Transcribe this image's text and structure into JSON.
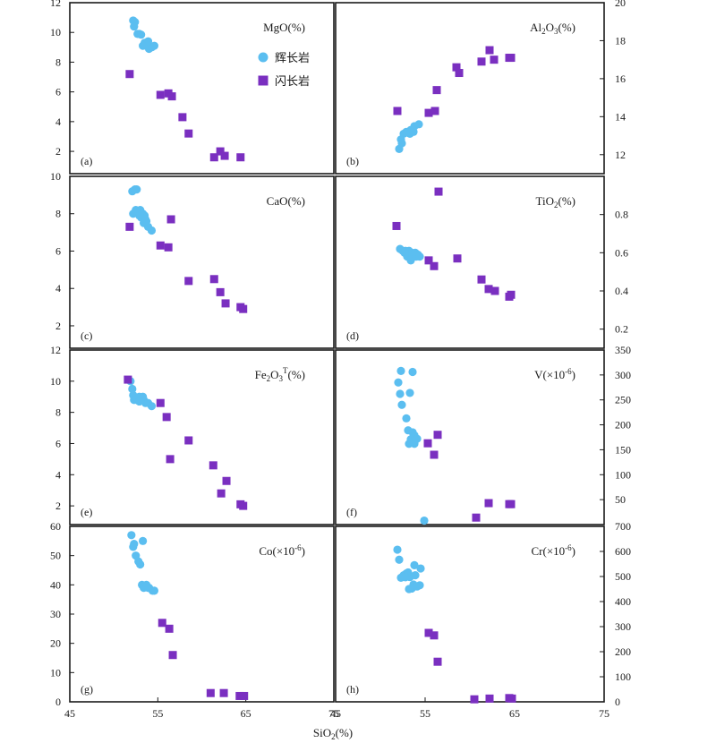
{
  "legend": {
    "gabbro": "辉长岩",
    "diorite": "闪长岩"
  },
  "colors": {
    "gabbro": "#5bbef0",
    "diorite": "#7a2fc0",
    "frame": "#1a1a1a"
  },
  "shared_xlabel": "SiO2(%)",
  "x_ticks": [
    "45",
    "55",
    "65",
    "75"
  ],
  "chart_data": [
    {
      "id": "a",
      "label": "(a)",
      "type": "scatter",
      "title": "MgO(%)",
      "title_html": [
        "MgO(%)"
      ],
      "xlim": [
        45,
        75
      ],
      "ylim": [
        0.5,
        12
      ],
      "yticks": [
        2,
        4,
        6,
        8,
        10,
        12
      ],
      "ytick_labels": [
        "2",
        "4",
        "6",
        "8",
        "10",
        "12"
      ],
      "yaxis": "left",
      "series": [
        {
          "name": "辉长岩",
          "points": [
            [
              52.2,
              10.8
            ],
            [
              52.4,
              10.7
            ],
            [
              52.3,
              10.4
            ],
            [
              52.7,
              9.9
            ],
            [
              52.9,
              9.9
            ],
            [
              53.1,
              9.85
            ],
            [
              53.5,
              9.3
            ],
            [
              53.7,
              9.1
            ],
            [
              53.9,
              9.4
            ],
            [
              53.3,
              9.1
            ],
            [
              54.3,
              9.0
            ],
            [
              54.6,
              9.1
            ],
            [
              54.0,
              8.9
            ]
          ]
        },
        {
          "name": "闪长岩",
          "points": [
            [
              51.8,
              7.2
            ],
            [
              55.3,
              5.8
            ],
            [
              56.2,
              5.9
            ],
            [
              56.6,
              5.7
            ],
            [
              57.8,
              4.3
            ],
            [
              58.5,
              3.2
            ],
            [
              61.4,
              1.6
            ],
            [
              62.1,
              2.0
            ],
            [
              62.6,
              1.7
            ],
            [
              64.4,
              1.6
            ]
          ]
        }
      ]
    },
    {
      "id": "b",
      "label": "(b)",
      "type": "scatter",
      "title": "Al2O3(%)",
      "title_html": [
        "Al",
        "2",
        "O",
        "3",
        "(%)"
      ],
      "xlim": [
        45,
        75
      ],
      "ylim": [
        11,
        20
      ],
      "yticks": [
        12,
        14,
        16,
        18,
        20
      ],
      "ytick_labels": [
        "12",
        "14",
        "16",
        "18",
        "20"
      ],
      "yaxis": "right",
      "series": [
        {
          "name": "辉长岩",
          "points": [
            [
              52.1,
              12.3
            ],
            [
              52.3,
              12.8
            ],
            [
              52.6,
              13.1
            ],
            [
              52.9,
              13.2
            ],
            [
              53.4,
              13.3
            ],
            [
              53.8,
              13.5
            ],
            [
              53.3,
              13.1
            ],
            [
              54.3,
              13.6
            ],
            [
              52.4,
              12.6
            ],
            [
              53.7,
              13.2
            ]
          ]
        },
        {
          "name": "闪长岩",
          "points": [
            [
              51.9,
              14.3
            ],
            [
              55.4,
              14.2
            ],
            [
              56.1,
              14.3
            ],
            [
              56.3,
              15.4
            ],
            [
              58.5,
              16.6
            ],
            [
              58.8,
              16.3
            ],
            [
              61.3,
              16.9
            ],
            [
              62.2,
              17.5
            ],
            [
              62.7,
              17.0
            ],
            [
              64.4,
              17.1
            ],
            [
              64.6,
              17.1
            ]
          ]
        }
      ]
    },
    {
      "id": "c",
      "label": "(c)",
      "type": "scatter",
      "title": "CaO(%)",
      "title_html": [
        "CaO(%)"
      ],
      "xlim": [
        45,
        75
      ],
      "ylim": [
        0.8,
        10
      ],
      "yticks": [
        2,
        4,
        6,
        8,
        10
      ],
      "ytick_labels": [
        "2",
        "4",
        "6",
        "8",
        "10"
      ],
      "yaxis": "left",
      "series": [
        {
          "name": "辉长岩",
          "points": [
            [
              52.1,
              9.2
            ],
            [
              52.4,
              9.3
            ],
            [
              52.6,
              9.3
            ],
            [
              52.2,
              8.0
            ],
            [
              52.5,
              8.2
            ],
            [
              52.8,
              8.1
            ],
            [
              53.0,
              8.2
            ],
            [
              53.3,
              8.0
            ],
            [
              53.5,
              7.9
            ],
            [
              53.1,
              7.8
            ],
            [
              53.7,
              7.6
            ],
            [
              53.4,
              7.5
            ],
            [
              53.9,
              7.3
            ],
            [
              54.3,
              7.1
            ],
            [
              52.9,
              7.9
            ],
            [
              53.6,
              7.7
            ]
          ]
        },
        {
          "name": "闪长岩",
          "points": [
            [
              51.8,
              7.3
            ],
            [
              55.3,
              6.3
            ],
            [
              56.2,
              6.2
            ],
            [
              56.5,
              7.7
            ],
            [
              58.5,
              4.4
            ],
            [
              61.4,
              4.5
            ],
            [
              62.1,
              3.8
            ],
            [
              62.7,
              3.2
            ],
            [
              64.4,
              3.0
            ],
            [
              64.7,
              2.9
            ]
          ]
        }
      ]
    },
    {
      "id": "d",
      "label": "(d)",
      "type": "scatter",
      "title": "TiO2(%)",
      "title_html": [
        "TiO",
        "2",
        "(%)"
      ],
      "xlim": [
        45,
        75
      ],
      "ylim": [
        0.1,
        1.0
      ],
      "yticks": [
        0.2,
        0.4,
        0.6,
        0.8
      ],
      "ytick_labels": [
        "0.2",
        "0.4",
        "0.6",
        "0.8"
      ],
      "yaxis": "right",
      "series": [
        {
          "name": "辉长岩",
          "points": [
            [
              52.2,
              0.62
            ],
            [
              52.5,
              0.61
            ],
            [
              52.8,
              0.61
            ],
            [
              53.2,
              0.61
            ],
            [
              53.5,
              0.6
            ],
            [
              53.9,
              0.6
            ],
            [
              54.2,
              0.59
            ],
            [
              53.0,
              0.58
            ],
            [
              53.3,
              0.58
            ],
            [
              53.6,
              0.59
            ],
            [
              53.4,
              0.56
            ],
            [
              54.0,
              0.58
            ],
            [
              54.4,
              0.58
            ],
            [
              52.7,
              0.6
            ]
          ]
        },
        {
          "name": "闪长岩",
          "points": [
            [
              51.8,
              0.74
            ],
            [
              55.4,
              0.56
            ],
            [
              56.0,
              0.53
            ],
            [
              56.5,
              0.92
            ],
            [
              58.6,
              0.57
            ],
            [
              61.3,
              0.46
            ],
            [
              62.1,
              0.41
            ],
            [
              62.8,
              0.4
            ],
            [
              64.4,
              0.37
            ],
            [
              64.6,
              0.38
            ]
          ]
        }
      ]
    },
    {
      "id": "e",
      "label": "(e)",
      "type": "scatter",
      "title": "Fe2O3T(%)",
      "title_html": [
        "Fe",
        "2",
        "O",
        "3",
        "T",
        "(%)"
      ],
      "xlim": [
        45,
        75
      ],
      "ylim": [
        0.8,
        12
      ],
      "yticks": [
        2,
        4,
        6,
        8,
        10,
        12
      ],
      "ytick_labels": [
        "2",
        "4",
        "6",
        "8",
        "10",
        "12"
      ],
      "yaxis": "left",
      "series": [
        {
          "name": "辉长岩",
          "points": [
            [
              51.9,
              10.0
            ],
            [
              52.1,
              9.5
            ],
            [
              52.2,
              9.1
            ],
            [
              52.3,
              8.8
            ],
            [
              52.6,
              8.8
            ],
            [
              52.9,
              9.0
            ],
            [
              53.1,
              8.8
            ],
            [
              53.4,
              8.8
            ],
            [
              53.6,
              8.6
            ],
            [
              53.9,
              8.6
            ],
            [
              54.3,
              8.4
            ],
            [
              53.3,
              9.0
            ],
            [
              52.9,
              8.7
            ]
          ]
        },
        {
          "name": "闪长岩",
          "points": [
            [
              51.6,
              10.1
            ],
            [
              55.3,
              8.6
            ],
            [
              56.0,
              7.7
            ],
            [
              56.4,
              5.0
            ],
            [
              58.5,
              6.2
            ],
            [
              61.3,
              4.6
            ],
            [
              62.2,
              2.8
            ],
            [
              62.8,
              3.6
            ],
            [
              64.4,
              2.1
            ],
            [
              64.7,
              2.0
            ]
          ]
        }
      ]
    },
    {
      "id": "f",
      "label": "(f)",
      "type": "scatter",
      "title": "V(×10-6)",
      "title_html": [
        "V(×10",
        "-6",
        ")"
      ],
      "xlim": [
        45,
        75
      ],
      "ylim": [
        0,
        350
      ],
      "yticks": [
        50,
        100,
        150,
        200,
        250,
        300,
        350
      ],
      "ytick_labels": [
        "50",
        "100",
        "150",
        "200",
        "250",
        "300",
        "350"
      ],
      "yaxis": "right",
      "series": [
        {
          "name": "辉长岩",
          "points": [
            [
              52.0,
              285
            ],
            [
              52.3,
              308
            ],
            [
              52.2,
              262
            ],
            [
              52.4,
              240
            ],
            [
              52.9,
              213
            ],
            [
              53.1,
              189
            ],
            [
              53.4,
              171
            ],
            [
              53.6,
              185
            ],
            [
              53.8,
              179
            ],
            [
              54.1,
              172
            ],
            [
              53.8,
              162
            ],
            [
              53.2,
              162
            ],
            [
              53.6,
              306
            ],
            [
              53.3,
              264
            ],
            [
              54.9,
              8
            ]
          ]
        },
        {
          "name": "闪长岩",
          "points": [
            [
              55.3,
              163
            ],
            [
              56.0,
              140
            ],
            [
              56.4,
              180
            ],
            [
              60.7,
              14
            ],
            [
              62.1,
              43
            ],
            [
              64.4,
              41
            ],
            [
              64.6,
              41
            ]
          ]
        }
      ]
    },
    {
      "id": "g",
      "label": "(g)",
      "type": "scatter",
      "title": "Co(×10-6)",
      "title_html": [
        "Co(×10",
        "-6",
        ")"
      ],
      "xlim": [
        45,
        75
      ],
      "ylim": [
        0,
        60
      ],
      "yticks": [
        0,
        10,
        20,
        30,
        40,
        50,
        60
      ],
      "ytick_labels": [
        "0",
        "10",
        "20",
        "30",
        "40",
        "50",
        "60"
      ],
      "yaxis": "left",
      "series": [
        {
          "name": "辉长岩",
          "points": [
            [
              52.0,
              57
            ],
            [
              52.3,
              54
            ],
            [
              52.5,
              50
            ],
            [
              52.2,
              53
            ],
            [
              52.8,
              48
            ],
            [
              53.0,
              47
            ],
            [
              53.3,
              55
            ],
            [
              53.2,
              40
            ],
            [
              53.4,
              39
            ],
            [
              53.7,
              40
            ],
            [
              54.0,
              39
            ],
            [
              54.4,
              38
            ],
            [
              54.6,
              38
            ],
            [
              53.9,
              39
            ]
          ]
        },
        {
          "name": "闪长岩",
          "points": [
            [
              55.5,
              27
            ],
            [
              56.3,
              25
            ],
            [
              56.7,
              16
            ],
            [
              61.0,
              3
            ],
            [
              62.5,
              3
            ],
            [
              64.3,
              2
            ],
            [
              64.8,
              2
            ]
          ]
        }
      ]
    },
    {
      "id": "h",
      "label": "(h)",
      "type": "scatter",
      "title": "Cr(×10-6)",
      "title_html": [
        "Cr(×10",
        "-6",
        ")"
      ],
      "xlim": [
        45,
        75
      ],
      "ylim": [
        0,
        700
      ],
      "yticks": [
        0,
        100,
        200,
        300,
        400,
        500,
        600,
        700
      ],
      "ytick_labels": [
        "0",
        "100",
        "200",
        "300",
        "400",
        "500",
        "600",
        "700"
      ],
      "yaxis": "right",
      "series": [
        {
          "name": "辉长岩",
          "points": [
            [
              51.9,
              607
            ],
            [
              52.1,
              567
            ],
            [
              52.3,
              495
            ],
            [
              52.6,
              505
            ],
            [
              52.9,
              512
            ],
            [
              53.1,
              516
            ],
            [
              53.3,
              498
            ],
            [
              53.5,
              452
            ],
            [
              53.7,
              468
            ],
            [
              53.9,
              505
            ],
            [
              54.1,
              460
            ],
            [
              54.4,
              465
            ],
            [
              54.5,
              532
            ],
            [
              53.8,
              545
            ],
            [
              52.8,
              497
            ],
            [
              53.2,
              450
            ]
          ]
        },
        {
          "name": "闪长岩",
          "points": [
            [
              55.4,
              275
            ],
            [
              56.0,
              265
            ],
            [
              56.4,
              160
            ],
            [
              60.5,
              10
            ],
            [
              62.2,
              13
            ],
            [
              64.4,
              15
            ],
            [
              64.7,
              13
            ]
          ]
        }
      ]
    }
  ]
}
